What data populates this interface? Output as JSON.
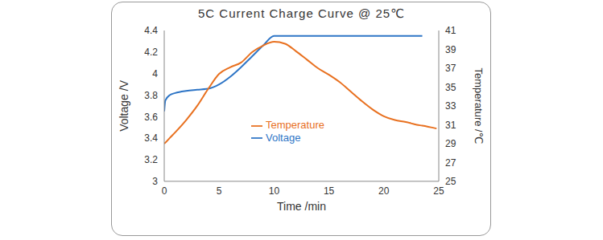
{
  "chart_data": {
    "type": "line",
    "title": "5C Current Charge Curve @ 25℃",
    "x_label": "Time /min",
    "y_label": "Voltage /V",
    "y2_label": "Temperature /℃",
    "x": [
      0,
      0.1,
      0.5,
      1,
      2,
      3,
      4,
      5,
      6,
      7,
      8,
      9,
      10,
      11,
      12,
      13,
      14,
      15,
      16,
      17,
      18,
      19,
      20,
      21,
      22,
      23,
      23.5,
      24.8
    ],
    "series": [
      {
        "name": "Voltage",
        "color": "#2e75c6",
        "values": [
          3.65,
          3.75,
          3.8,
          3.82,
          3.84,
          3.85,
          3.86,
          3.9,
          3.97,
          4.06,
          4.16,
          4.26,
          4.35,
          4.35,
          4.35,
          4.35,
          4.35,
          4.35,
          4.35,
          4.35,
          4.35,
          4.35,
          4.35,
          4.35,
          4.35,
          4.35,
          4.35,
          null
        ]
      },
      {
        "name": "Temperature",
        "color": "#e8701f",
        "axis": "y2",
        "values": [
          29,
          29.1,
          29.6,
          30.2,
          31.5,
          33,
          34.8,
          36.4,
          37.1,
          37.6,
          38.7,
          39.4,
          39.8,
          39.6,
          38.8,
          37.9,
          37,
          36.3,
          35.5,
          34.5,
          33.5,
          32.6,
          31.9,
          31.5,
          31.3,
          31,
          30.9,
          30.6
        ]
      }
    ],
    "xlim": [
      0,
      25
    ],
    "xticks": [
      0,
      5,
      10,
      15,
      20,
      25
    ],
    "ylim": [
      3,
      4.4
    ],
    "yticks": [
      3,
      3.2,
      3.4,
      3.6,
      3.8,
      4,
      4.2,
      4.4
    ],
    "y2lim": [
      25,
      41
    ],
    "y2ticks": [
      25,
      27,
      29,
      31,
      33,
      35,
      37,
      39,
      41
    ],
    "grid": false,
    "legend": "center"
  }
}
